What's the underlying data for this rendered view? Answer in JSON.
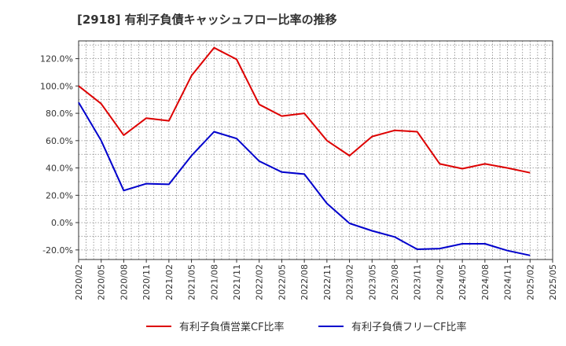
{
  "title": "[2918]  有利子負債キャッシュフロー比率の推移",
  "chart_data": {
    "type": "line",
    "title": "[2918]  有利子負債キャッシュフロー比率の推移",
    "x": [
      "2020/02",
      "2020/05",
      "2020/08",
      "2020/11",
      "2021/02",
      "2021/05",
      "2021/08",
      "2021/11",
      "2022/02",
      "2022/05",
      "2022/08",
      "2022/11",
      "2023/02",
      "2023/05",
      "2023/08",
      "2023/11",
      "2024/02",
      "2024/05",
      "2024/08",
      "2024/11",
      "2025/02",
      "2025/05"
    ],
    "y_ticks": [
      -20,
      0,
      20,
      40,
      60,
      80,
      100,
      120
    ],
    "y_tick_labels": [
      "-20.0%",
      "0.0%",
      "20.0%",
      "40.0%",
      "60.0%",
      "80.0%",
      "100.0%",
      "120.0%"
    ],
    "ylim": [
      -27,
      133
    ],
    "grid": true,
    "legend_position": "bottom",
    "series": [
      {
        "name": "有利子負債営業CF比率",
        "color": "#dd0000",
        "points": [
          [
            "2020/02",
            100.0
          ],
          [
            "2020/05",
            87.0
          ],
          [
            "2020/08",
            64.0
          ],
          [
            "2020/11",
            76.5
          ],
          [
            "2021/02",
            74.5
          ],
          [
            "2021/05",
            107.5
          ],
          [
            "2021/08",
            128.0
          ],
          [
            "2021/11",
            119.5
          ],
          [
            "2022/02",
            86.5
          ],
          [
            "2022/05",
            78.0
          ],
          [
            "2022/08",
            80.0
          ],
          [
            "2022/11",
            60.0
          ],
          [
            "2023/02",
            49.0
          ],
          [
            "2023/05",
            63.0
          ],
          [
            "2023/08",
            67.5
          ],
          [
            "2023/11",
            66.5
          ],
          [
            "2024/02",
            43.0
          ],
          [
            "2024/05",
            39.5
          ],
          [
            "2024/08",
            43.0
          ],
          [
            "2024/11",
            40.0
          ],
          [
            "2025/02",
            36.5
          ]
        ]
      },
      {
        "name": "有利子負債フリーCF比率",
        "color": "#0000cc",
        "points": [
          [
            "2020/02",
            88.0
          ],
          [
            "2020/05",
            60.0
          ],
          [
            "2020/08",
            23.5
          ],
          [
            "2020/11",
            28.5
          ],
          [
            "2021/02",
            28.0
          ],
          [
            "2021/05",
            49.0
          ],
          [
            "2021/08",
            66.5
          ],
          [
            "2021/11",
            61.5
          ],
          [
            "2022/02",
            45.0
          ],
          [
            "2022/05",
            37.0
          ],
          [
            "2022/08",
            35.5
          ],
          [
            "2022/11",
            14.0
          ],
          [
            "2023/02",
            -0.5
          ],
          [
            "2023/05",
            -6.0
          ],
          [
            "2023/08",
            -10.5
          ],
          [
            "2023/11",
            -19.5
          ],
          [
            "2024/02",
            -19.0
          ],
          [
            "2024/05",
            -15.5
          ],
          [
            "2024/08",
            -15.5
          ],
          [
            "2024/11",
            -20.5
          ],
          [
            "2025/02",
            -24.0
          ]
        ]
      }
    ]
  }
}
